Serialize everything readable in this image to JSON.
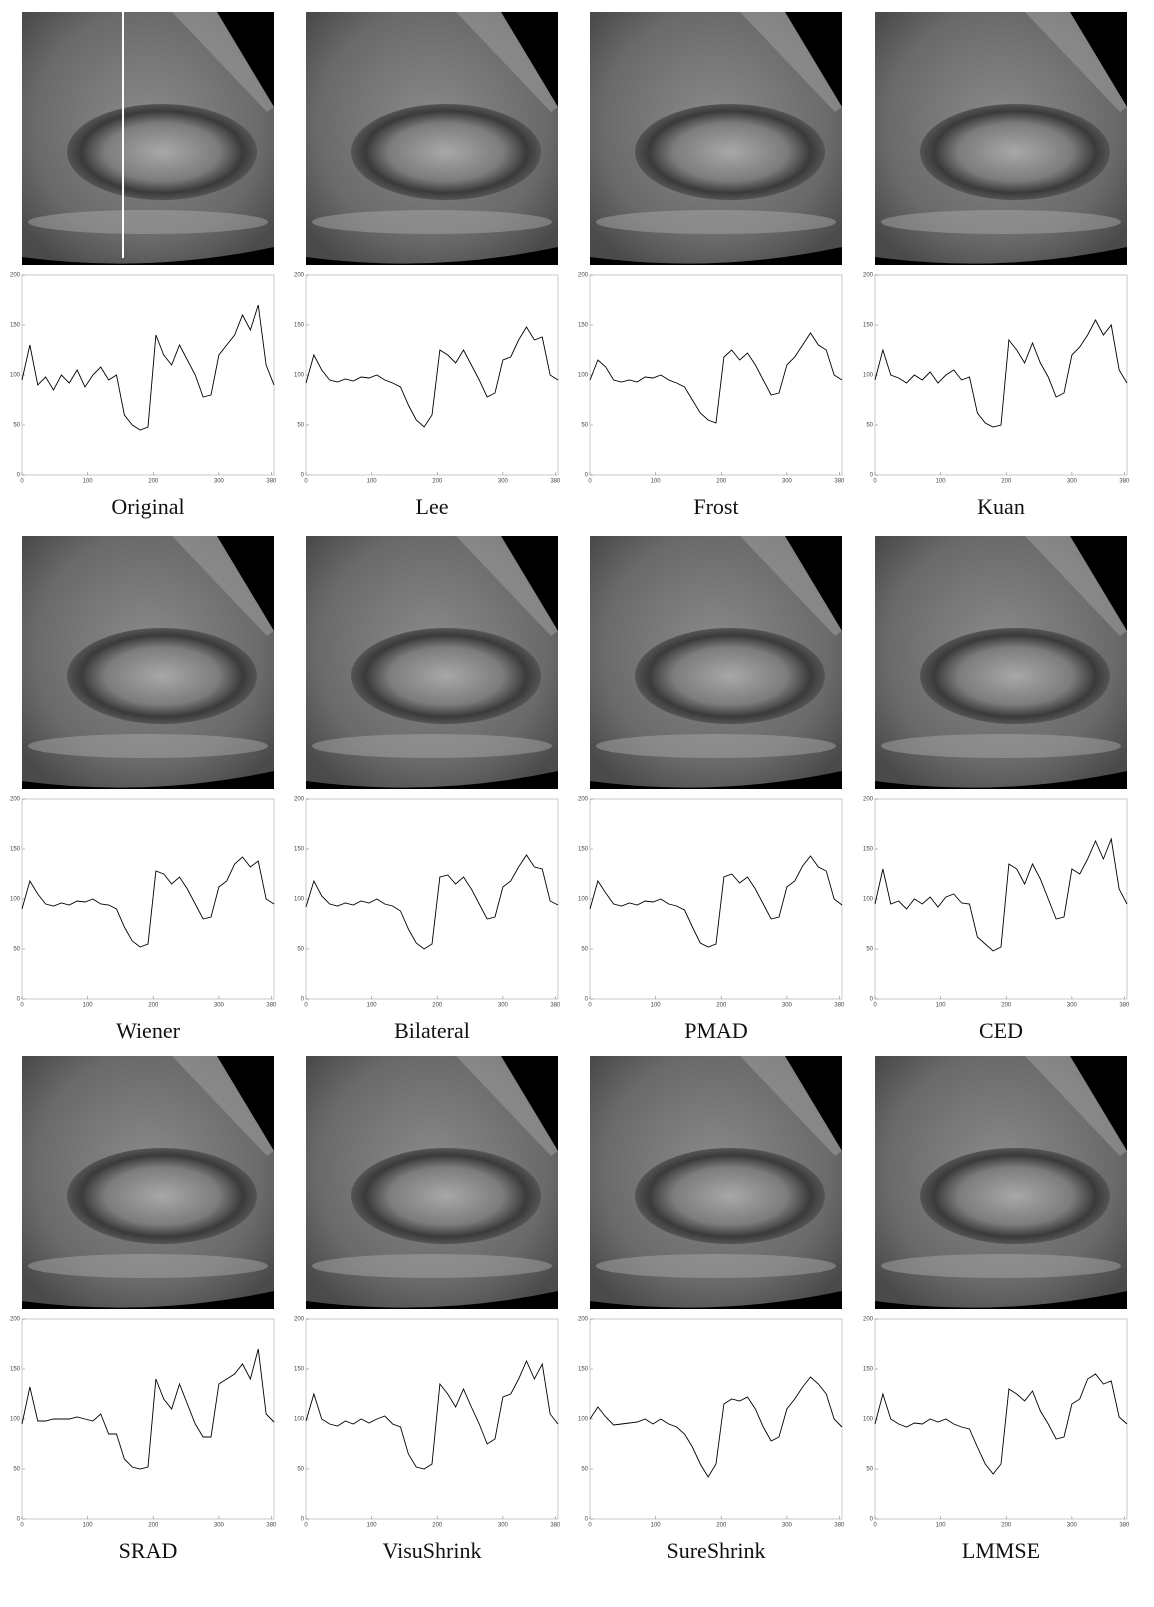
{
  "chart_data": [
    {
      "type": "line",
      "title": "Original",
      "x": [
        0,
        12,
        24,
        36,
        48,
        60,
        72,
        84,
        96,
        108,
        120,
        132,
        144,
        156,
        168,
        180,
        192,
        204,
        216,
        228,
        240,
        252,
        264,
        276,
        288,
        300,
        312,
        324,
        336,
        348,
        360,
        372,
        384
      ],
      "values": [
        95,
        130,
        90,
        98,
        85,
        100,
        92,
        105,
        88,
        100,
        108,
        95,
        100,
        60,
        50,
        45,
        48,
        140,
        120,
        110,
        130,
        115,
        100,
        78,
        80,
        120,
        130,
        140,
        160,
        145,
        170,
        110,
        90
      ],
      "color": "#000000",
      "xlim": [
        0,
        384
      ],
      "ylim": [
        0,
        200
      ],
      "xticks": [
        0,
        100,
        200,
        300,
        380
      ],
      "yticks": [
        0,
        50,
        100,
        150,
        200
      ]
    },
    {
      "type": "line",
      "title": "Lee",
      "x": [
        0,
        12,
        24,
        36,
        48,
        60,
        72,
        84,
        96,
        108,
        120,
        132,
        144,
        156,
        168,
        180,
        192,
        204,
        216,
        228,
        240,
        252,
        264,
        276,
        288,
        300,
        312,
        324,
        336,
        348,
        360,
        372,
        384
      ],
      "values": [
        92,
        120,
        105,
        95,
        93,
        96,
        94,
        98,
        97,
        100,
        95,
        92,
        88,
        70,
        55,
        48,
        60,
        125,
        120,
        112,
        125,
        110,
        95,
        78,
        82,
        115,
        118,
        135,
        148,
        135,
        138,
        100,
        95
      ],
      "color": "#000000",
      "xlim": [
        0,
        384
      ],
      "ylim": [
        0,
        200
      ],
      "xticks": [
        0,
        100,
        200,
        300,
        380
      ],
      "yticks": [
        0,
        50,
        100,
        150,
        200
      ]
    },
    {
      "type": "line",
      "title": "Frost",
      "x": [
        0,
        12,
        24,
        36,
        48,
        60,
        72,
        84,
        96,
        108,
        120,
        132,
        144,
        156,
        168,
        180,
        192,
        204,
        216,
        228,
        240,
        252,
        264,
        276,
        288,
        300,
        312,
        324,
        336,
        348,
        360,
        372,
        384
      ],
      "values": [
        95,
        115,
        108,
        95,
        93,
        95,
        93,
        98,
        97,
        100,
        95,
        92,
        88,
        75,
        62,
        55,
        52,
        118,
        125,
        115,
        122,
        110,
        95,
        80,
        82,
        110,
        118,
        130,
        142,
        130,
        125,
        100,
        95
      ],
      "color": "#000000",
      "xlim": [
        0,
        384
      ],
      "ylim": [
        0,
        200
      ],
      "xticks": [
        0,
        100,
        200,
        300,
        380
      ],
      "yticks": [
        0,
        50,
        100,
        150,
        200
      ]
    },
    {
      "type": "line",
      "title": "Kuan",
      "x": [
        0,
        12,
        24,
        36,
        48,
        60,
        72,
        84,
        96,
        108,
        120,
        132,
        144,
        156,
        168,
        180,
        192,
        204,
        216,
        228,
        240,
        252,
        264,
        276,
        288,
        300,
        312,
        324,
        336,
        348,
        360,
        372,
        384
      ],
      "values": [
        95,
        125,
        100,
        97,
        92,
        100,
        95,
        103,
        92,
        100,
        105,
        95,
        98,
        62,
        52,
        48,
        50,
        135,
        125,
        112,
        132,
        112,
        98,
        78,
        82,
        120,
        128,
        140,
        155,
        140,
        150,
        105,
        92
      ],
      "color": "#000000",
      "xlim": [
        0,
        384
      ],
      "ylim": [
        0,
        200
      ],
      "xticks": [
        0,
        100,
        200,
        300,
        380
      ],
      "yticks": [
        0,
        50,
        100,
        150,
        200
      ]
    },
    {
      "type": "line",
      "title": "Wiener",
      "x": [
        0,
        12,
        24,
        36,
        48,
        60,
        72,
        84,
        96,
        108,
        120,
        132,
        144,
        156,
        168,
        180,
        192,
        204,
        216,
        228,
        240,
        252,
        264,
        276,
        288,
        300,
        312,
        324,
        336,
        348,
        360,
        372,
        384
      ],
      "values": [
        90,
        118,
        105,
        95,
        93,
        96,
        94,
        98,
        97,
        100,
        95,
        94,
        90,
        72,
        58,
        52,
        55,
        128,
        125,
        115,
        122,
        110,
        95,
        80,
        82,
        112,
        118,
        135,
        142,
        132,
        138,
        100,
        95
      ],
      "color": "#000000",
      "xlim": [
        0,
        384
      ],
      "ylim": [
        0,
        200
      ],
      "xticks": [
        0,
        100,
        200,
        300,
        380
      ],
      "yticks": [
        0,
        50,
        100,
        150,
        200
      ]
    },
    {
      "type": "line",
      "title": "Bilateral",
      "x": [
        0,
        12,
        24,
        36,
        48,
        60,
        72,
        84,
        96,
        108,
        120,
        132,
        144,
        156,
        168,
        180,
        192,
        204,
        216,
        228,
        240,
        252,
        264,
        276,
        288,
        300,
        312,
        324,
        336,
        348,
        360,
        372,
        384
      ],
      "values": [
        92,
        118,
        103,
        95,
        93,
        96,
        94,
        98,
        96,
        100,
        95,
        93,
        88,
        70,
        56,
        50,
        55,
        122,
        124,
        115,
        122,
        110,
        95,
        80,
        82,
        112,
        118,
        132,
        144,
        132,
        130,
        98,
        94
      ],
      "color": "#000000",
      "xlim": [
        0,
        384
      ],
      "ylim": [
        0,
        200
      ],
      "xticks": [
        0,
        100,
        200,
        300,
        380
      ],
      "yticks": [
        0,
        50,
        100,
        150,
        200
      ]
    },
    {
      "type": "line",
      "title": "PMAD",
      "x": [
        0,
        12,
        24,
        36,
        48,
        60,
        72,
        84,
        96,
        108,
        120,
        132,
        144,
        156,
        168,
        180,
        192,
        204,
        216,
        228,
        240,
        252,
        264,
        276,
        288,
        300,
        312,
        324,
        336,
        348,
        360,
        372,
        384
      ],
      "values": [
        90,
        118,
        106,
        95,
        93,
        96,
        94,
        98,
        97,
        100,
        95,
        93,
        89,
        72,
        56,
        52,
        55,
        122,
        125,
        116,
        122,
        110,
        95,
        80,
        82,
        112,
        118,
        133,
        143,
        132,
        128,
        100,
        94
      ],
      "color": "#000000",
      "xlim": [
        0,
        384
      ],
      "ylim": [
        0,
        200
      ],
      "xticks": [
        0,
        100,
        200,
        300,
        380
      ],
      "yticks": [
        0,
        50,
        100,
        150,
        200
      ]
    },
    {
      "type": "line",
      "title": "CED",
      "x": [
        0,
        12,
        24,
        36,
        48,
        60,
        72,
        84,
        96,
        108,
        120,
        132,
        144,
        156,
        168,
        180,
        192,
        204,
        216,
        228,
        240,
        252,
        264,
        276,
        288,
        300,
        312,
        324,
        336,
        348,
        360,
        372,
        384
      ],
      "values": [
        95,
        130,
        95,
        98,
        90,
        100,
        95,
        102,
        92,
        102,
        105,
        96,
        95,
        62,
        55,
        48,
        52,
        135,
        130,
        115,
        135,
        120,
        100,
        80,
        82,
        130,
        125,
        140,
        158,
        140,
        160,
        110,
        95
      ],
      "color": "#000000",
      "xlim": [
        0,
        384
      ],
      "ylim": [
        0,
        200
      ],
      "xticks": [
        0,
        100,
        200,
        300,
        380
      ],
      "yticks": [
        0,
        50,
        100,
        150,
        200
      ]
    },
    {
      "type": "line",
      "title": "SRAD",
      "x": [
        0,
        12,
        24,
        36,
        48,
        60,
        72,
        84,
        96,
        108,
        120,
        132,
        144,
        156,
        168,
        180,
        192,
        204,
        216,
        228,
        240,
        252,
        264,
        276,
        288,
        300,
        312,
        324,
        336,
        348,
        360,
        372,
        384
      ],
      "values": [
        95,
        132,
        98,
        98,
        100,
        100,
        100,
        102,
        100,
        98,
        105,
        85,
        85,
        60,
        52,
        50,
        52,
        140,
        120,
        110,
        135,
        115,
        95,
        82,
        82,
        135,
        140,
        145,
        155,
        140,
        170,
        105,
        97
      ],
      "color": "#000000",
      "xlim": [
        0,
        384
      ],
      "ylim": [
        0,
        200
      ],
      "xticks": [
        0,
        100,
        200,
        300,
        380
      ],
      "yticks": [
        0,
        50,
        100,
        150,
        200
      ]
    },
    {
      "type": "line",
      "title": "VisuShrink",
      "x": [
        0,
        12,
        24,
        36,
        48,
        60,
        72,
        84,
        96,
        108,
        120,
        132,
        144,
        156,
        168,
        180,
        192,
        204,
        216,
        228,
        240,
        252,
        264,
        276,
        288,
        300,
        312,
        324,
        336,
        348,
        360,
        372,
        384
      ],
      "values": [
        98,
        125,
        100,
        95,
        93,
        98,
        95,
        100,
        96,
        100,
        103,
        95,
        92,
        65,
        52,
        50,
        55,
        135,
        125,
        112,
        130,
        112,
        95,
        75,
        80,
        122,
        125,
        140,
        158,
        140,
        155,
        105,
        95
      ],
      "color": "#000000",
      "xlim": [
        0,
        384
      ],
      "ylim": [
        0,
        200
      ],
      "xticks": [
        0,
        100,
        200,
        300,
        380
      ],
      "yticks": [
        0,
        50,
        100,
        150,
        200
      ]
    },
    {
      "type": "line",
      "title": "SureShrink",
      "x": [
        0,
        12,
        24,
        36,
        48,
        60,
        72,
        84,
        96,
        108,
        120,
        132,
        144,
        156,
        168,
        180,
        192,
        204,
        216,
        228,
        240,
        252,
        264,
        276,
        288,
        300,
        312,
        324,
        336,
        348,
        360,
        372,
        384
      ],
      "values": [
        100,
        112,
        102,
        94,
        95,
        96,
        97,
        100,
        95,
        100,
        95,
        92,
        85,
        72,
        55,
        42,
        55,
        115,
        120,
        118,
        122,
        110,
        92,
        78,
        82,
        110,
        120,
        132,
        142,
        135,
        125,
        100,
        92
      ],
      "color": "#000000",
      "xlim": [
        0,
        384
      ],
      "ylim": [
        0,
        200
      ],
      "xticks": [
        0,
        100,
        200,
        300,
        380
      ],
      "yticks": [
        0,
        50,
        100,
        150,
        200
      ]
    },
    {
      "type": "line",
      "title": "LMMSE",
      "x": [
        0,
        12,
        24,
        36,
        48,
        60,
        72,
        84,
        96,
        108,
        120,
        132,
        144,
        156,
        168,
        180,
        192,
        204,
        216,
        228,
        240,
        252,
        264,
        276,
        288,
        300,
        312,
        324,
        336,
        348,
        360,
        372,
        384
      ],
      "values": [
        95,
        125,
        100,
        95,
        92,
        96,
        95,
        100,
        97,
        100,
        95,
        92,
        90,
        72,
        55,
        45,
        55,
        130,
        125,
        118,
        128,
        108,
        95,
        80,
        82,
        115,
        120,
        140,
        145,
        135,
        138,
        102,
        95
      ],
      "color": "#000000",
      "xlim": [
        0,
        384
      ],
      "ylim": [
        0,
        200
      ],
      "xticks": [
        0,
        100,
        200,
        300,
        380
      ],
      "yticks": [
        0,
        50,
        100,
        150,
        200
      ]
    }
  ]
}
